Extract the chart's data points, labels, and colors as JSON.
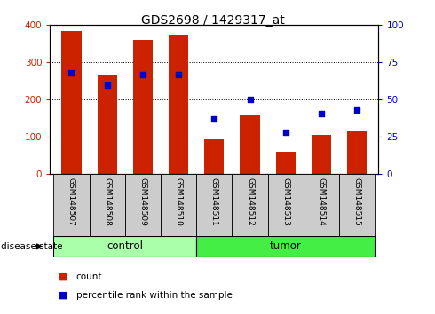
{
  "title": "GDS2698 / 1429317_at",
  "samples": [
    "GSM148507",
    "GSM148508",
    "GSM148509",
    "GSM148510",
    "GSM148511",
    "GSM148512",
    "GSM148513",
    "GSM148514",
    "GSM148515"
  ],
  "counts": [
    385,
    265,
    360,
    375,
    95,
    158,
    60,
    105,
    115
  ],
  "percentiles": [
    68,
    60,
    67,
    67,
    37,
    50,
    28,
    41,
    43
  ],
  "groups": [
    "control",
    "control",
    "control",
    "control",
    "tumor",
    "tumor",
    "tumor",
    "tumor",
    "tumor"
  ],
  "ylim_left": [
    0,
    400
  ],
  "ylim_right": [
    0,
    100
  ],
  "yticks_left": [
    0,
    100,
    200,
    300,
    400
  ],
  "yticks_right": [
    0,
    25,
    50,
    75,
    100
  ],
  "bar_color": "#cc2200",
  "dot_color": "#0000cc",
  "control_color": "#aaffaa",
  "tumor_color": "#44ee44",
  "label_bg_color": "#cccccc",
  "legend_count_label": "count",
  "legend_pct_label": "percentile rank within the sample",
  "disease_state_label": "disease state",
  "n_control": 4,
  "n_tumor": 5
}
